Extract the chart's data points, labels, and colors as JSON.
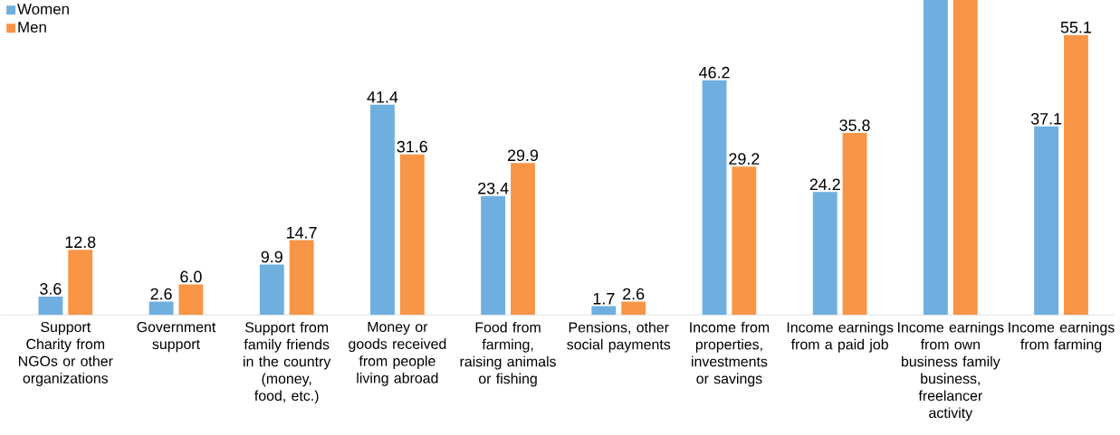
{
  "chart_data": {
    "type": "bar",
    "categories": [
      "Support Charity from NGOs or other organizations",
      "Government support",
      "Support from family friends in the country (money, food, etc.)",
      "Money or goods received from people living abroad",
      "Food from farming, raising animals or fishing",
      "Pensions, other social payments",
      "Income from properties, investments or savings",
      "Income earnings from a paid job",
      "Income earnings from own business family business, freelancer activity",
      "Income earnings from farming"
    ],
    "series": [
      {
        "name": "Women",
        "color": "#6fafdf",
        "values": [
          3.6,
          2.6,
          9.9,
          41.4,
          23.4,
          1.7,
          46.2,
          24.2,
          62,
          37.1
        ],
        "value_labels": [
          "3.6",
          "2.6",
          "9.9",
          "41.4",
          "23.4",
          "1.7",
          "46.2",
          "24.2",
          null,
          "37.1"
        ]
      },
      {
        "name": "Men",
        "color": "#f89547",
        "values": [
          12.8,
          6.0,
          14.7,
          31.6,
          29.9,
          2.6,
          29.2,
          35.8,
          62,
          55.1
        ],
        "value_labels": [
          "12.8",
          "6.0",
          "14.7",
          "31.6",
          "29.9",
          "2.6",
          "29.2",
          "35.8",
          null,
          "55.1"
        ]
      }
    ],
    "ylim": [
      0,
      62
    ],
    "legend": "top left"
  }
}
